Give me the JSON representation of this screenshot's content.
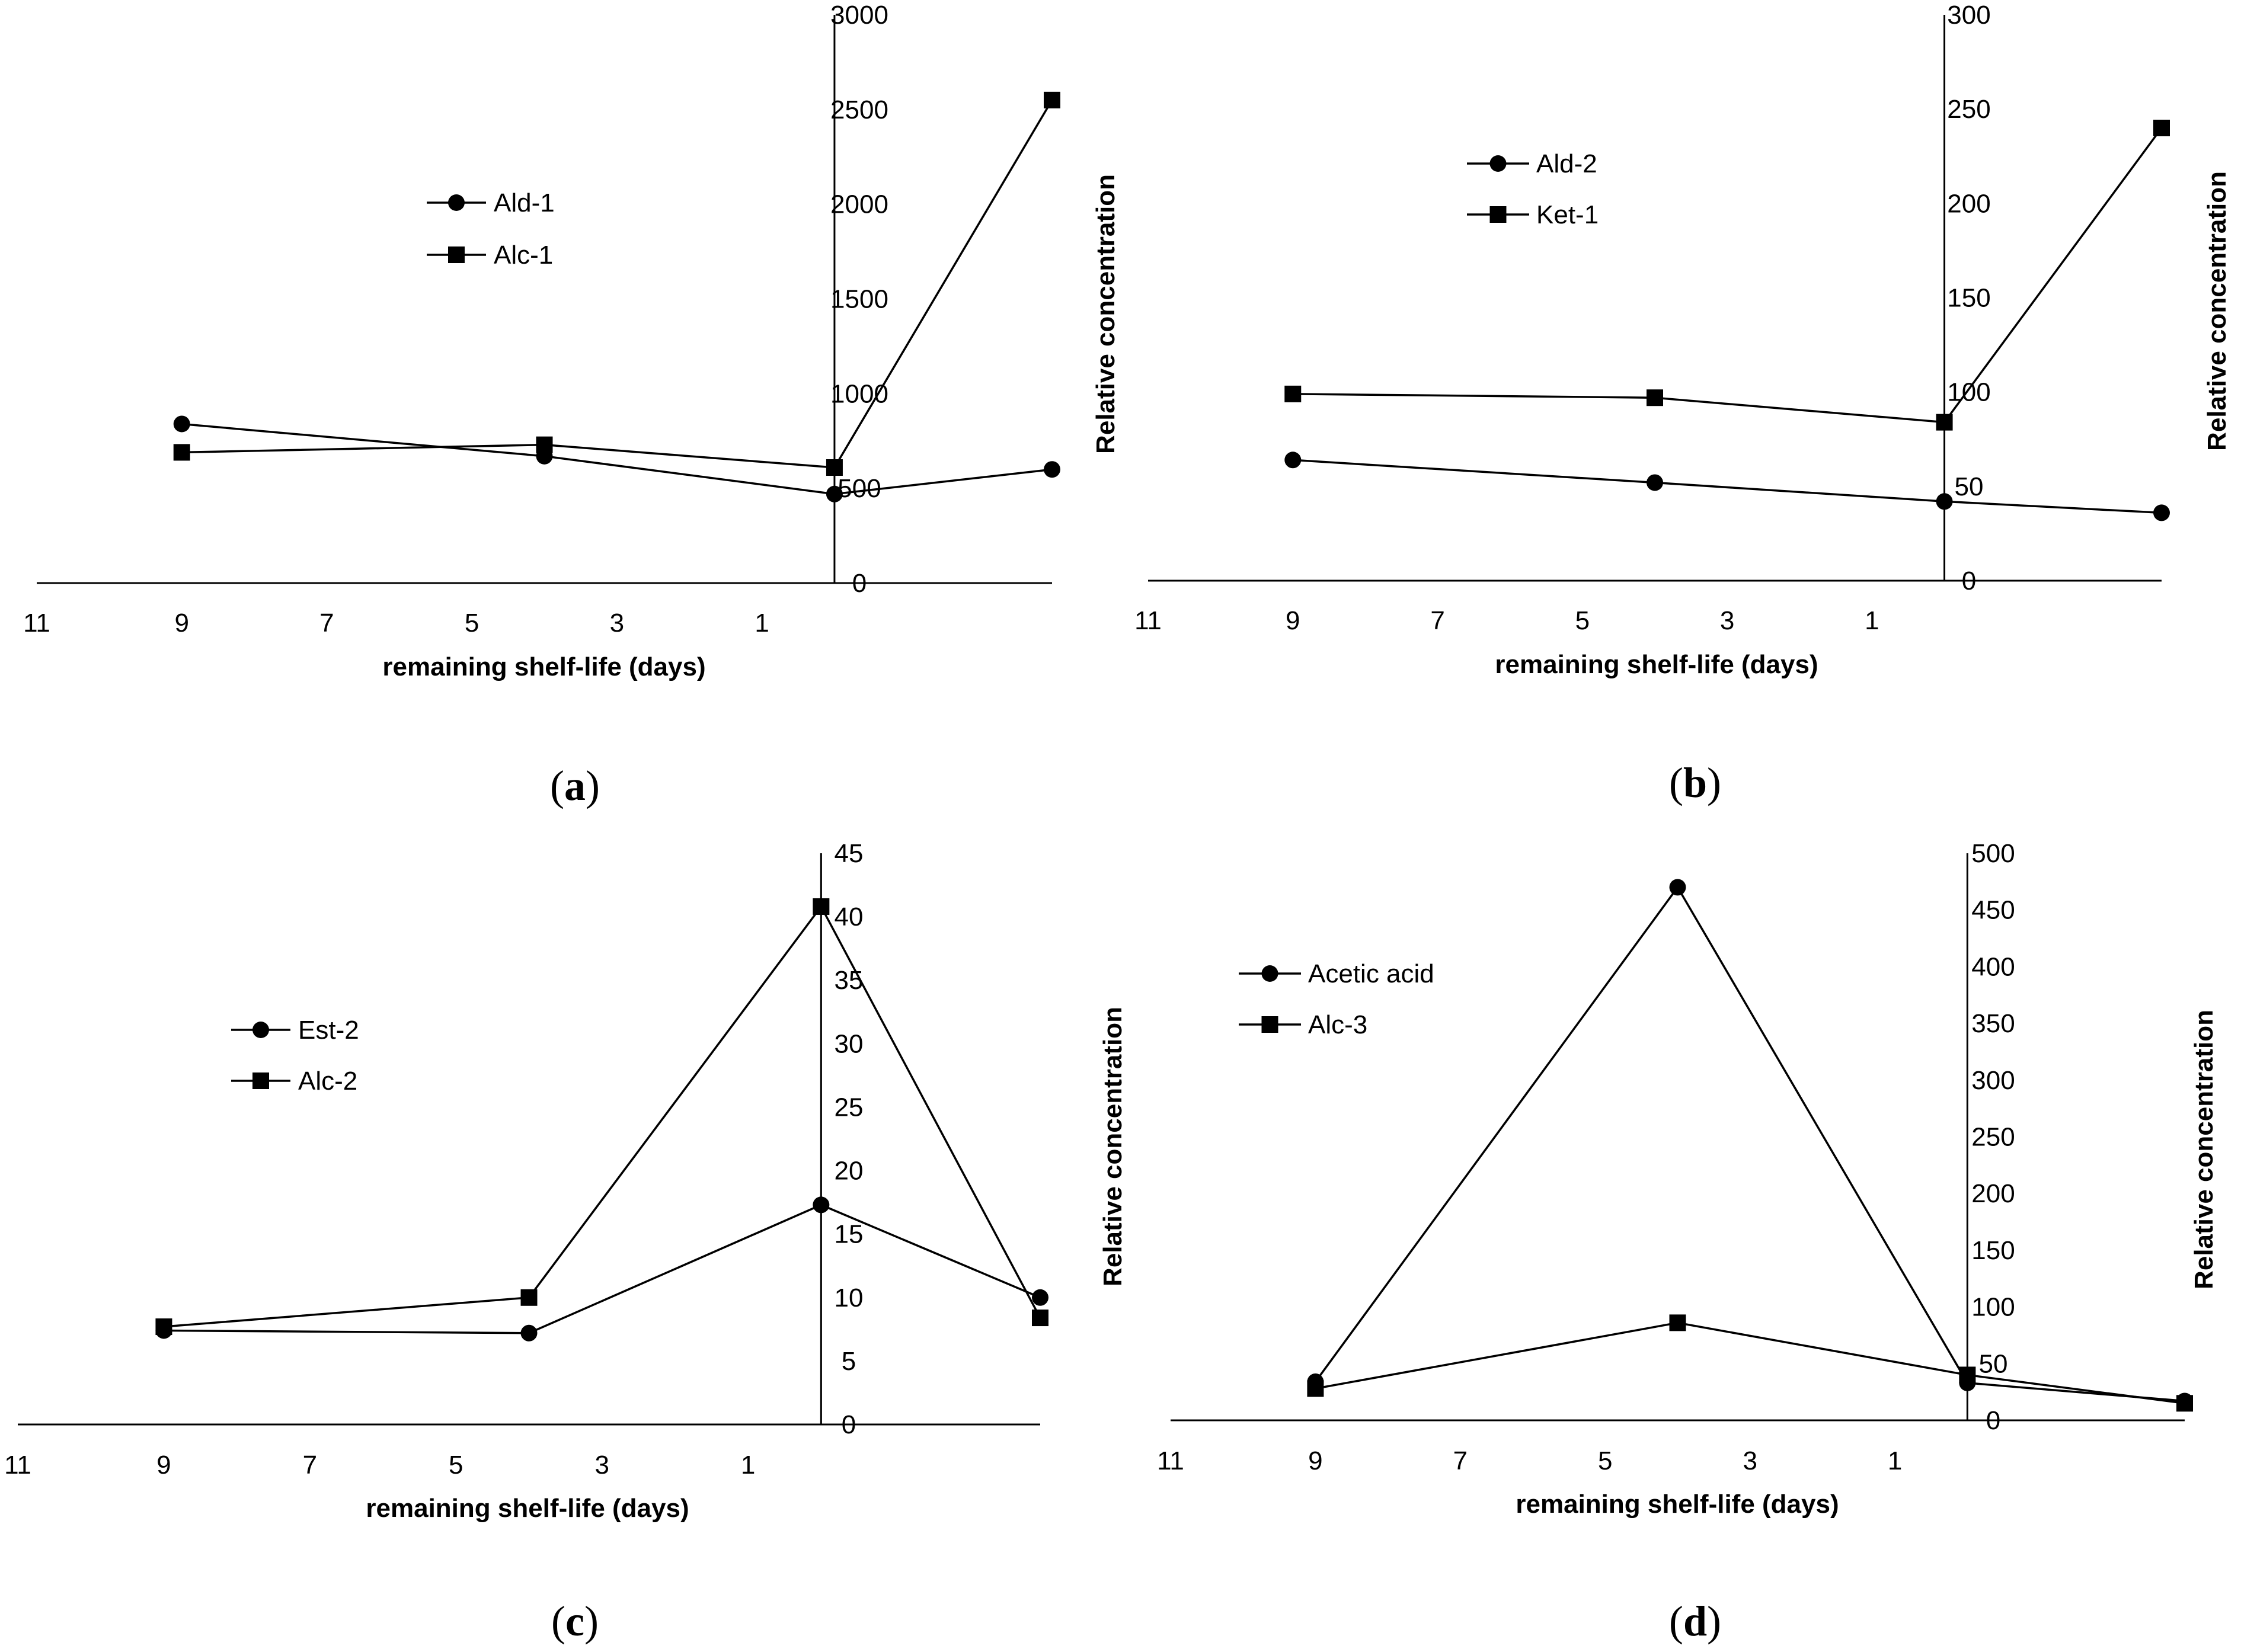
{
  "chart_data": [
    {
      "type": "line",
      "panel_label_parts": [
        "(",
        "a",
        ")"
      ],
      "xlabel": "remaining shelf-life (days)",
      "ylabel": "Relative concentration",
      "x_ticks": [
        "11",
        "9",
        "7",
        "5",
        "3",
        "1"
      ],
      "y_ticks": [
        "0",
        "500",
        "1000",
        "1500",
        "2000",
        "2500",
        "3000"
      ],
      "ylim": [
        0,
        3000
      ],
      "x_axis_range": [
        11,
        -3
      ],
      "y_axis_at_x": 0,
      "grid": false,
      "legend_position": "upper-left",
      "series": [
        {
          "name": "Ald-1",
          "marker": "circle",
          "x": [
            9,
            4,
            0,
            -3
          ],
          "values": [
            840,
            670,
            470,
            600
          ]
        },
        {
          "name": "Alc-1",
          "marker": "square",
          "x": [
            9,
            4,
            0,
            -3
          ],
          "values": [
            690,
            730,
            610,
            2550
          ]
        }
      ]
    },
    {
      "type": "line",
      "panel_label_parts": [
        "(",
        "b",
        ")"
      ],
      "xlabel": "remaining shelf-life (days)",
      "ylabel": "Relative concentration",
      "x_ticks": [
        "11",
        "9",
        "7",
        "5",
        "3",
        "1"
      ],
      "y_ticks": [
        "0",
        "50",
        "100",
        "150",
        "200",
        "250",
        "300"
      ],
      "ylim": [
        0,
        300
      ],
      "x_axis_range": [
        11,
        -3
      ],
      "y_axis_at_x": 0,
      "grid": false,
      "legend_position": "upper-left",
      "series": [
        {
          "name": "Ald-2",
          "marker": "circle",
          "x": [
            9,
            4,
            0,
            -3
          ],
          "values": [
            64,
            52,
            42,
            36
          ]
        },
        {
          "name": "Ket-1",
          "marker": "square",
          "x": [
            9,
            4,
            0,
            -3
          ],
          "values": [
            99,
            97,
            84,
            240
          ]
        }
      ]
    },
    {
      "type": "line",
      "panel_label_parts": [
        "(",
        "c",
        ")"
      ],
      "xlabel": "remaining shelf-life (days)",
      "ylabel": "",
      "x_ticks": [
        "11",
        "9",
        "7",
        "5",
        "3",
        "1"
      ],
      "y_ticks": [
        "0",
        "5",
        "10",
        "15",
        "20",
        "25",
        "30",
        "35",
        "40",
        "45"
      ],
      "ylim": [
        0,
        45
      ],
      "x_axis_range": [
        11,
        -3
      ],
      "y_axis_at_x": 0,
      "grid": false,
      "legend_position": "left",
      "series": [
        {
          "name": "Est-2",
          "marker": "circle",
          "x": [
            9,
            4,
            0,
            -3
          ],
          "values": [
            7.4,
            7.2,
            17.3,
            10
          ]
        },
        {
          "name": "Alc-2",
          "marker": "square",
          "x": [
            9,
            4,
            0,
            -3
          ],
          "values": [
            7.7,
            10,
            40.8,
            8.4
          ]
        }
      ]
    },
    {
      "type": "line",
      "panel_label_parts": [
        "(",
        "d",
        ")"
      ],
      "xlabel": "remaining shelf-life (days)",
      "ylabel": "Relative concentration",
      "x_ticks": [
        "11",
        "9",
        "7",
        "5",
        "3",
        "1"
      ],
      "y_ticks": [
        "0",
        "50",
        "100",
        "150",
        "200",
        "250",
        "300",
        "350",
        "400",
        "450",
        "500"
      ],
      "ylim": [
        0,
        500
      ],
      "x_axis_range": [
        11,
        -3
      ],
      "y_axis_at_x": 0,
      "grid": false,
      "legend_position": "upper-left",
      "series": [
        {
          "name": "Acetic acid",
          "marker": "circle",
          "x": [
            9,
            4,
            0,
            -3
          ],
          "values": [
            34,
            470,
            33,
            17
          ]
        },
        {
          "name": "Alc-3",
          "marker": "square",
          "x": [
            9,
            4,
            0,
            -3
          ],
          "values": [
            28,
            86,
            40,
            15
          ]
        }
      ]
    }
  ]
}
